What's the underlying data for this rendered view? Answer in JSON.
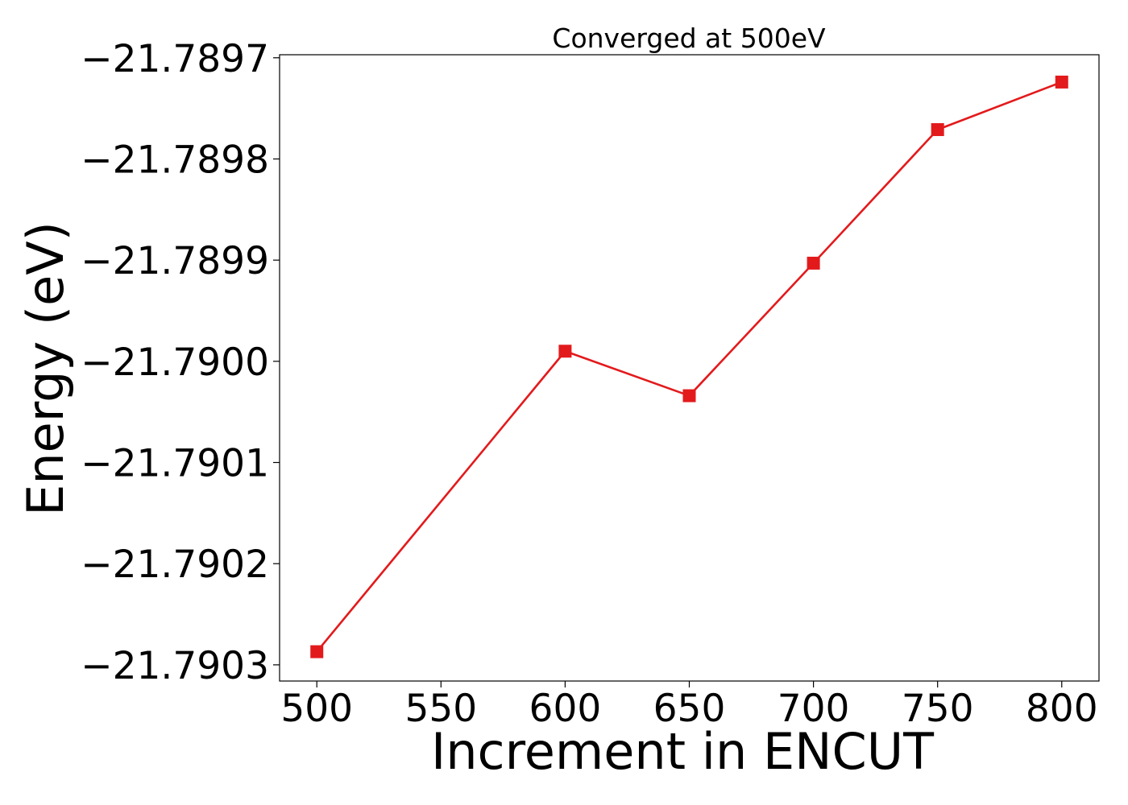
{
  "chart_data": {
    "type": "line",
    "title": "Converged at 500eV",
    "xlabel": "Increment in ENCUT",
    "ylabel": "Energy (eV)",
    "x": [
      500,
      600,
      650,
      700,
      750,
      800
    ],
    "series": [
      {
        "values": [
          -21.790287,
          -21.78999,
          -21.790034,
          -21.789903,
          -21.789771,
          -21.789724
        ],
        "color": "#e31a1c",
        "marker": "square"
      }
    ],
    "xlim": [
      485,
      815
    ],
    "ylim": [
      -21.790316,
      -21.789697
    ],
    "x_ticks": [
      500,
      550,
      600,
      650,
      700,
      750,
      800
    ],
    "x_tick_labels": [
      "500",
      "550",
      "600",
      "650",
      "700",
      "750",
      "800"
    ],
    "y_ticks": [
      -21.7903,
      -21.7902,
      -21.7901,
      -21.79,
      -21.7899,
      -21.7898,
      -21.7897
    ],
    "y_tick_labels": [
      "−21.7903",
      "−21.7902",
      "−21.7901",
      "−21.7900",
      "−21.7899",
      "−21.7898",
      "−21.7897"
    ],
    "grid": false,
    "legend": "none"
  }
}
